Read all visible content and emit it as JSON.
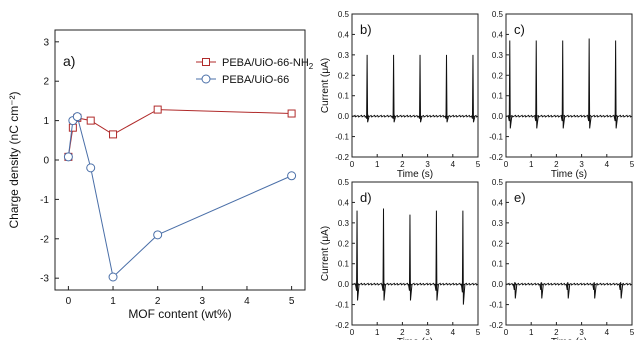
{
  "chart_data": [
    {
      "id": "a",
      "type": "line",
      "panel_label": "a)",
      "xlabel": "MOF content (wt%)",
      "ylabel": "Charge density (nC cm⁻²)",
      "xlim": [
        -0.3,
        5.3
      ],
      "ylim": [
        -3.3,
        3.3
      ],
      "xticks": [
        0,
        1,
        2,
        3,
        4,
        5
      ],
      "yticks": [
        -3,
        -2,
        -1,
        0,
        1,
        2,
        3
      ],
      "legend_position": "top-right",
      "series": [
        {
          "name": "PEBA/UiO-66-NH",
          "name_subscript": "2",
          "marker": "square",
          "color": "#b02a2a",
          "x": [
            0,
            0.1,
            0.2,
            0.5,
            1,
            2,
            5
          ],
          "y": [
            0.08,
            0.82,
            1.07,
            1.0,
            0.65,
            1.28,
            1.18
          ]
        },
        {
          "name": "PEBA/UiO-66",
          "marker": "circle",
          "color": "#4a6fa8",
          "x": [
            0,
            0.1,
            0.2,
            0.5,
            1,
            2,
            5
          ],
          "y": [
            0.08,
            1.0,
            1.1,
            -0.2,
            -2.97,
            -1.9,
            -0.4
          ]
        }
      ]
    },
    {
      "id": "b",
      "type": "line",
      "panel_label": "b)",
      "xlabel": "Time (s)",
      "ylabel": "Current (μA)",
      "xlim": [
        0,
        5
      ],
      "ylim": [
        -0.2,
        0.5
      ],
      "xticks": [
        0,
        1,
        2,
        3,
        4,
        5
      ],
      "yticks": [
        -0.2,
        -0.1,
        0.0,
        0.1,
        0.2,
        0.3,
        0.4,
        0.5
      ],
      "peak_times": [
        0.6,
        1.65,
        2.7,
        3.75,
        4.8
      ],
      "peak_up": [
        0.3,
        0.3,
        0.3,
        0.3,
        0.3
      ],
      "peak_down": [
        -0.03,
        -0.03,
        -0.03,
        -0.03,
        -0.03
      ]
    },
    {
      "id": "c",
      "type": "line",
      "panel_label": "c)",
      "xlabel": "Time (s)",
      "ylabel": "",
      "xlim": [
        0,
        5
      ],
      "ylim": [
        -0.2,
        0.5
      ],
      "xticks": [
        0,
        1,
        2,
        3,
        4,
        5
      ],
      "yticks": [
        -0.2,
        -0.1,
        0.0,
        0.1,
        0.2,
        0.3,
        0.4,
        0.5
      ],
      "peak_times": [
        0.15,
        1.2,
        2.25,
        3.3,
        4.35
      ],
      "peak_up": [
        0.37,
        0.37,
        0.37,
        0.38,
        0.37
      ],
      "peak_down": [
        -0.06,
        -0.06,
        -0.06,
        -0.06,
        -0.06
      ]
    },
    {
      "id": "d",
      "type": "line",
      "panel_label": "d)",
      "xlabel": "Time (s)",
      "ylabel": "Current (μA)",
      "xlim": [
        0,
        5
      ],
      "ylim": [
        -0.2,
        0.5
      ],
      "xticks": [
        0,
        1,
        2,
        3,
        4,
        5
      ],
      "yticks": [
        -0.2,
        -0.1,
        0.0,
        0.1,
        0.2,
        0.3,
        0.4,
        0.5
      ],
      "peak_times": [
        0.2,
        1.25,
        2.3,
        3.35,
        4.4
      ],
      "peak_up": [
        0.36,
        0.37,
        0.34,
        0.36,
        0.36
      ],
      "peak_down": [
        -0.08,
        -0.08,
        -0.08,
        -0.08,
        -0.1
      ]
    },
    {
      "id": "e",
      "type": "line",
      "panel_label": "e)",
      "xlabel": "Time (s)",
      "ylabel": "",
      "xlim": [
        0,
        5
      ],
      "ylim": [
        -0.2,
        0.5
      ],
      "xticks": [
        0,
        1,
        2,
        3,
        4,
        5
      ],
      "yticks": [
        -0.2,
        -0.1,
        0.0,
        0.1,
        0.2,
        0.3,
        0.4,
        0.5
      ],
      "peak_times": [
        0.35,
        1.4,
        2.45,
        3.5,
        4.55
      ],
      "peak_up": [
        0.01,
        0.01,
        0.01,
        0.01,
        0.01
      ],
      "peak_down": [
        -0.07,
        -0.07,
        -0.07,
        -0.07,
        -0.07
      ]
    }
  ]
}
